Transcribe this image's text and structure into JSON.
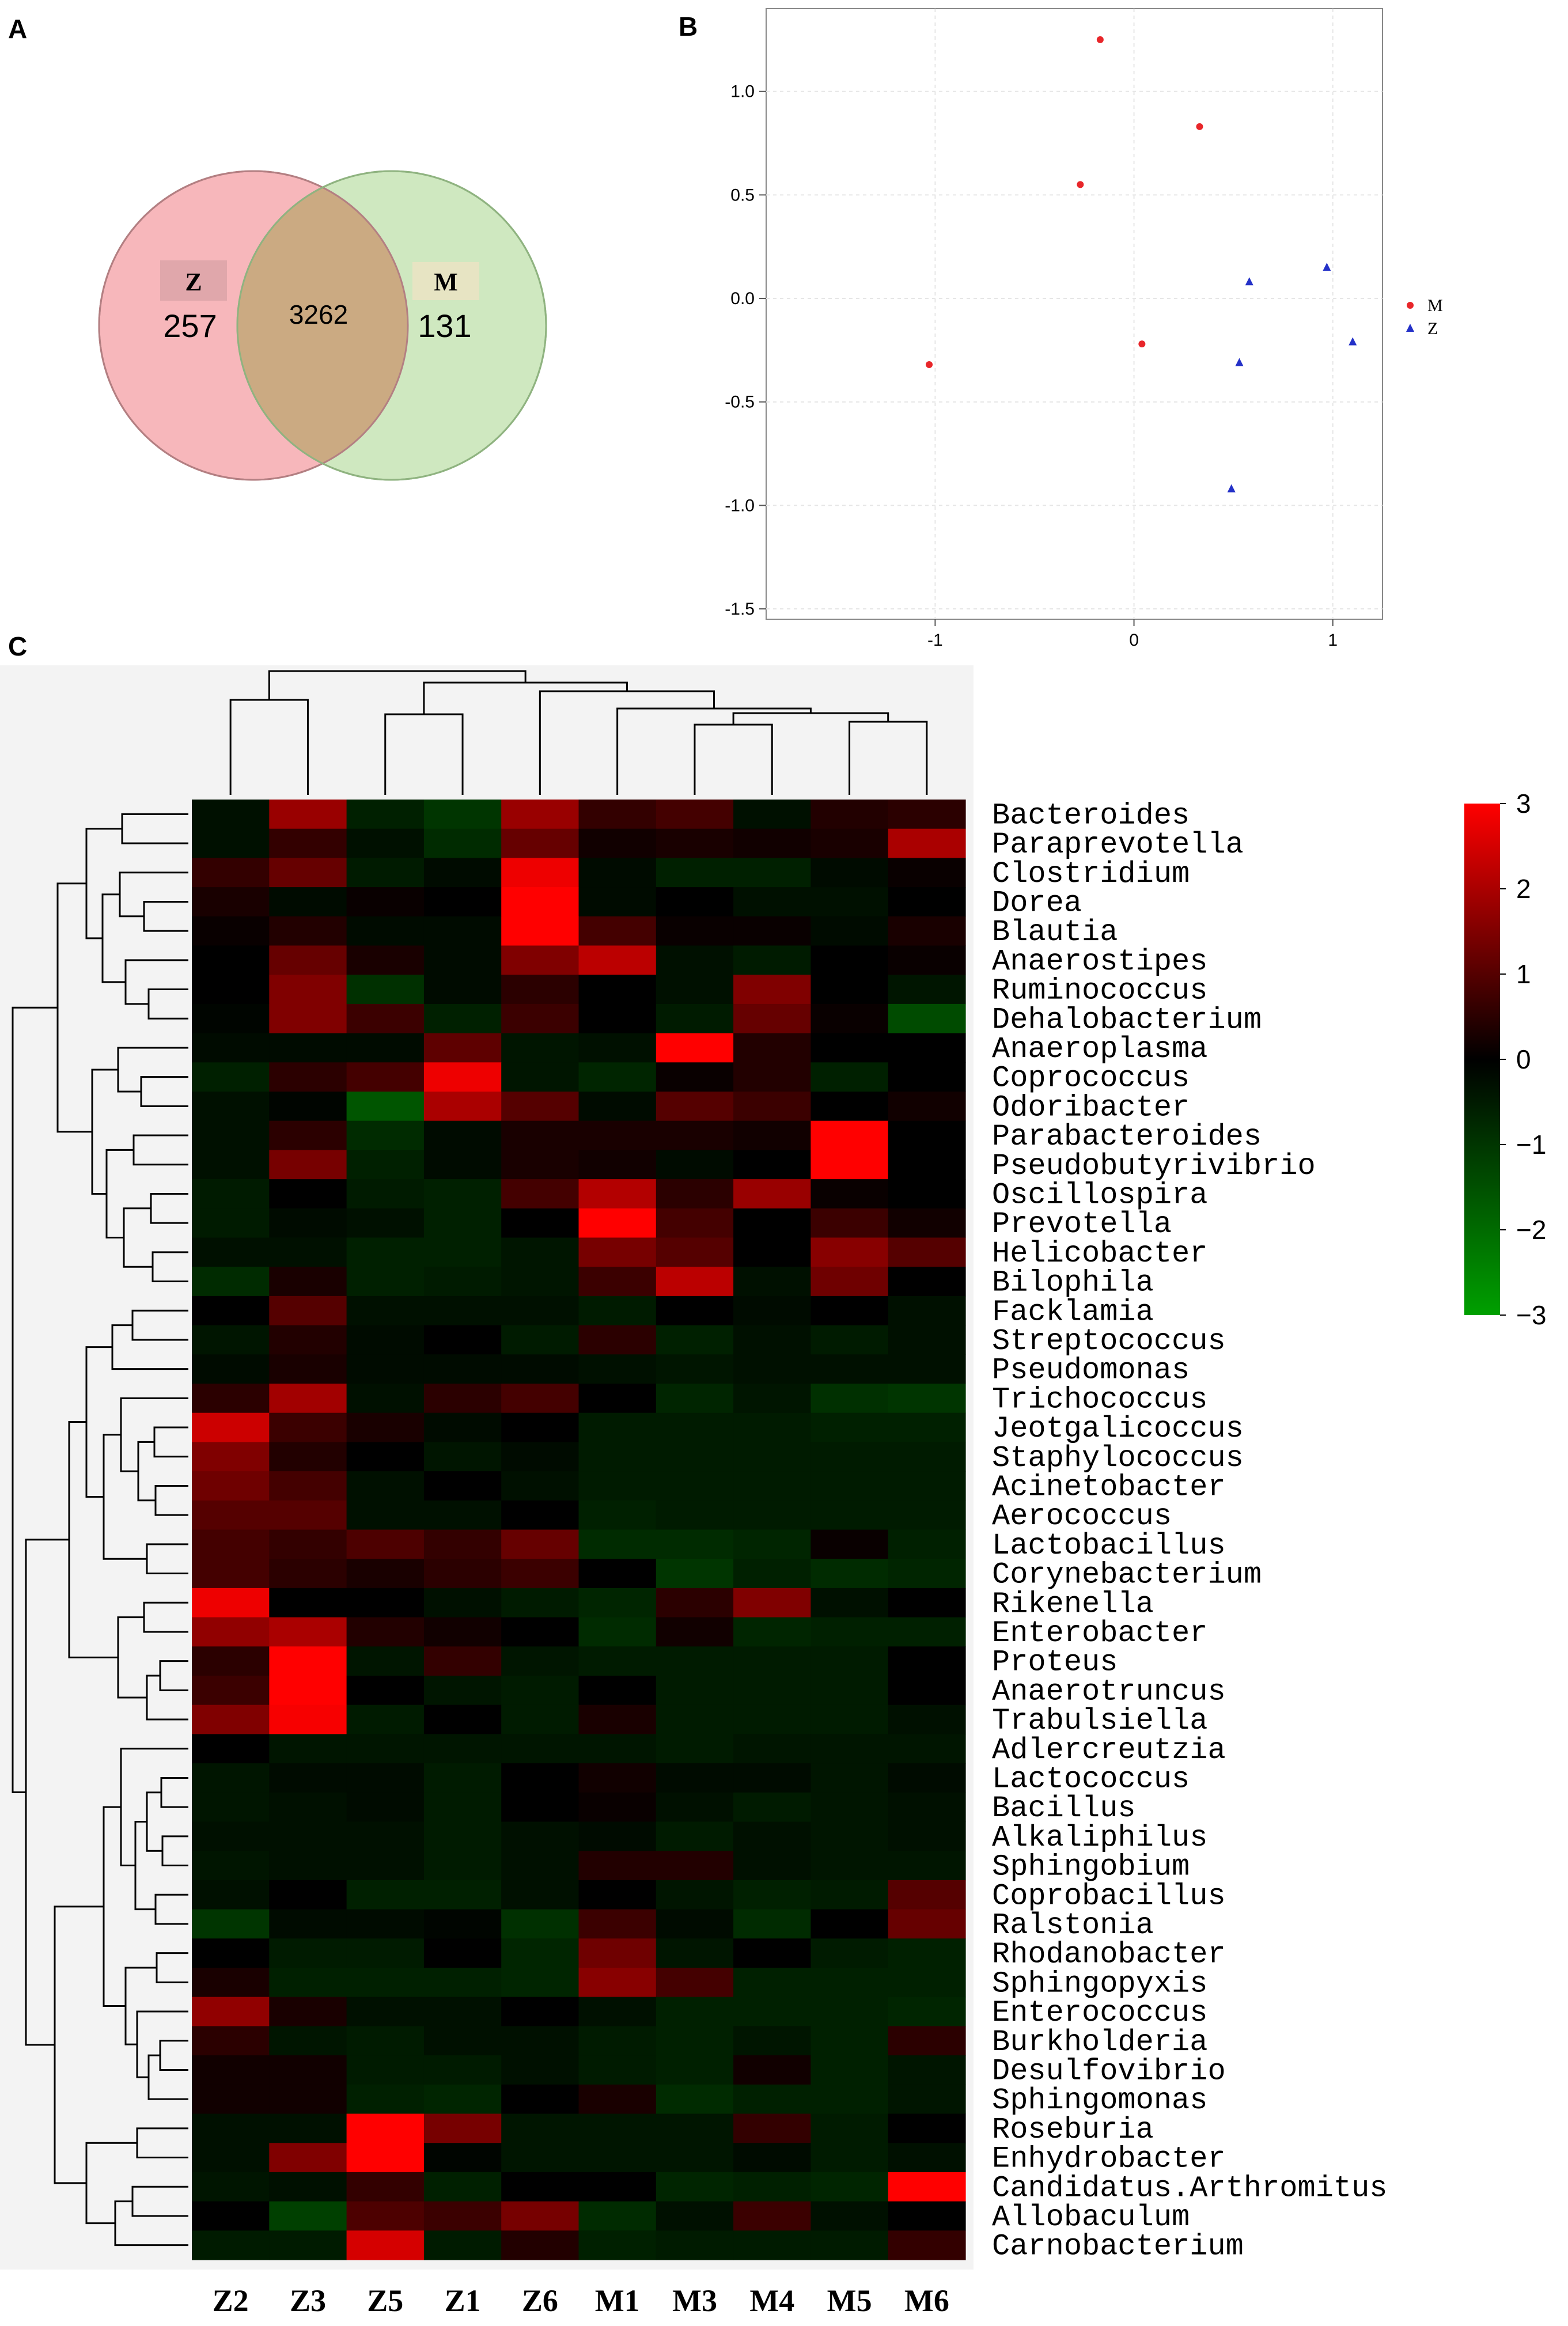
{
  "panels": {
    "a": "A",
    "b": "B",
    "c": "C"
  },
  "chart_data": [
    {
      "type": "venn",
      "sets": [
        {
          "name": "Z",
          "only": 257,
          "color": "#f7b7bb"
        },
        {
          "name": "M",
          "only": 131,
          "color": "#cfe8c0"
        }
      ],
      "overlap": 3262,
      "overlap_color": "#cbaa82"
    },
    {
      "type": "scatter",
      "xlim": [
        -1.85,
        1.25
      ],
      "ylim": [
        -1.55,
        1.4
      ],
      "xticks": [
        -1,
        0,
        1
      ],
      "yticks": [
        -1.5,
        -1.0,
        -0.5,
        0.0,
        0.5,
        1.0
      ],
      "xtick_labels": [
        "-1",
        "0",
        "1"
      ],
      "ytick_labels": [
        "-1.5",
        "-1.0",
        "-0.5",
        "0.0",
        "0.5",
        "1.0"
      ],
      "grid": true,
      "legend": "right",
      "series": [
        {
          "name": "M",
          "marker": "circle",
          "color": "#e8262a",
          "points": [
            [
              -0.17,
              1.25
            ],
            [
              0.33,
              0.83
            ],
            [
              -0.27,
              0.55
            ],
            [
              0.04,
              -0.22
            ],
            [
              -1.03,
              -0.32
            ]
          ]
        },
        {
          "name": "Z",
          "marker": "triangle",
          "color": "#2431c8",
          "points": [
            [
              0.58,
              0.08
            ],
            [
              0.97,
              0.15
            ],
            [
              1.1,
              -0.21
            ],
            [
              0.53,
              -0.31
            ],
            [
              0.49,
              -0.92
            ]
          ]
        }
      ]
    },
    {
      "type": "heatmap",
      "columns": [
        "Z2",
        "Z3",
        "Z5",
        "Z1",
        "Z6",
        "M1",
        "M3",
        "M4",
        "M5",
        "M6"
      ],
      "rows": [
        "Bacteroides",
        "Paraprevotella",
        "Clostridium",
        "Dorea",
        "Blautia",
        "Anaerostipes",
        "Ruminococcus",
        "Dehalobacterium",
        "Anaeroplasma",
        "Coprococcus",
        "Odoribacter",
        "Parabacteroides",
        "Pseudobutyrivibrio",
        "Oscillospira",
        "Prevotella",
        "Helicobacter",
        "Bilophila",
        "Facklamia",
        "Streptococcus",
        "Pseudomonas",
        "Trichococcus",
        "Jeotgalicoccus",
        "Staphylococcus",
        "Acinetobacter",
        "Aerococcus",
        "Lactobacillus",
        "Corynebacterium",
        "Rikenella",
        "Enterobacter",
        "Proteus",
        "Anaerotruncus",
        "Trabulsiella",
        "Adlercreutzia",
        "Lactococcus",
        "Bacillus",
        "Alkaliphilus",
        "Sphingobium",
        "Coprobacillus",
        "Ralstonia",
        "Rhodanobacter",
        "Sphingopyxis",
        "Enterococcus",
        "Burkholderia",
        "Desulfovibrio",
        "Sphingomonas",
        "Roseburia",
        "Enhydrobacter",
        "Candidatus.Arthromitus",
        "Allobaculum",
        "Carnobacterium"
      ],
      "values": [
        [
          -0.3,
          1.8,
          -0.6,
          -1.0,
          1.8,
          0.6,
          0.8,
          -0.3,
          0.4,
          0.5
        ],
        [
          -0.3,
          0.6,
          -0.3,
          -0.8,
          1.2,
          0.2,
          0.3,
          0.2,
          0.3,
          2.0
        ],
        [
          0.6,
          1.2,
          -0.5,
          -0.2,
          2.8,
          -0.2,
          -0.6,
          -0.6,
          -0.2,
          0.1
        ],
        [
          0.3,
          -0.2,
          0.1,
          0.0,
          3.4,
          -0.2,
          0.0,
          -0.3,
          -0.3,
          0.0
        ],
        [
          0.1,
          0.4,
          -0.2,
          -0.2,
          3.0,
          0.8,
          0.1,
          0.1,
          -0.2,
          0.3
        ],
        [
          0.0,
          1.2,
          0.3,
          -0.2,
          1.5,
          2.2,
          -0.3,
          -0.5,
          0.0,
          0.1
        ],
        [
          0.0,
          1.5,
          -0.9,
          -0.2,
          0.5,
          0.0,
          -0.3,
          1.5,
          0.0,
          -0.4
        ],
        [
          -0.1,
          1.5,
          0.7,
          -0.6,
          0.7,
          0.0,
          -0.5,
          1.2,
          0.1,
          -1.4
        ],
        [
          -0.2,
          -0.2,
          -0.2,
          1.1,
          -0.4,
          -0.3,
          3.2,
          0.4,
          0.0,
          0.0
        ],
        [
          -0.6,
          0.5,
          0.8,
          2.8,
          -0.4,
          -0.7,
          0.1,
          0.4,
          -0.6,
          0.0
        ],
        [
          -0.3,
          -0.1,
          -1.6,
          2.0,
          1.0,
          -0.2,
          1.0,
          0.7,
          0.0,
          0.2
        ],
        [
          -0.3,
          0.5,
          -0.8,
          -0.2,
          0.3,
          0.3,
          0.3,
          0.2,
          3.3,
          0.0
        ],
        [
          -0.3,
          1.4,
          -0.6,
          -0.2,
          0.3,
          0.2,
          -0.2,
          0.0,
          3.3,
          0.0
        ],
        [
          -0.5,
          0.0,
          -0.5,
          -0.6,
          0.8,
          2.1,
          0.5,
          1.8,
          0.1,
          0.0
        ],
        [
          -0.5,
          -0.2,
          -0.3,
          -0.6,
          0.0,
          3.0,
          0.8,
          0.0,
          0.7,
          0.2
        ],
        [
          -0.3,
          -0.3,
          -0.6,
          -0.6,
          -0.4,
          1.4,
          1.0,
          0.0,
          1.6,
          1.0
        ],
        [
          -0.8,
          0.3,
          -0.6,
          -0.5,
          -0.4,
          0.7,
          2.2,
          -0.3,
          1.3,
          0.0
        ],
        [
          0.0,
          1.0,
          -0.3,
          -0.3,
          -0.3,
          -0.5,
          0.0,
          -0.2,
          0.0,
          -0.3
        ],
        [
          -0.4,
          0.4,
          -0.2,
          0.0,
          -0.5,
          0.5,
          -0.6,
          -0.3,
          -0.5,
          -0.3
        ],
        [
          -0.2,
          0.3,
          -0.2,
          -0.2,
          -0.2,
          -0.3,
          -0.4,
          -0.3,
          -0.3,
          -0.3
        ],
        [
          0.5,
          1.9,
          -0.3,
          0.5,
          0.8,
          0.0,
          -0.7,
          -0.4,
          -0.9,
          -1.0
        ],
        [
          2.4,
          0.7,
          0.3,
          -0.2,
          0.0,
          -0.5,
          -0.5,
          -0.5,
          -0.6,
          -0.6
        ],
        [
          1.5,
          0.4,
          0.0,
          -0.4,
          -0.2,
          -0.5,
          -0.5,
          -0.5,
          -0.5,
          -0.5
        ],
        [
          1.3,
          0.8,
          -0.3,
          0.0,
          -0.3,
          -0.5,
          -0.5,
          -0.5,
          -0.5,
          -0.5
        ],
        [
          1.0,
          1.0,
          -0.3,
          -0.3,
          0.0,
          -0.6,
          -0.5,
          -0.5,
          -0.5,
          -0.5
        ],
        [
          0.8,
          0.6,
          0.9,
          0.6,
          1.2,
          -0.8,
          -0.8,
          -0.7,
          0.1,
          -0.6
        ],
        [
          0.8,
          0.5,
          0.3,
          0.5,
          0.7,
          0.0,
          -1.0,
          -0.6,
          -0.8,
          -0.7
        ],
        [
          2.8,
          0.0,
          0.0,
          -0.3,
          -0.5,
          -0.7,
          0.5,
          1.5,
          -0.3,
          0.0
        ],
        [
          1.7,
          2.0,
          0.4,
          0.2,
          0.0,
          -0.8,
          0.2,
          -0.7,
          -0.6,
          -0.6
        ],
        [
          0.5,
          3.2,
          -0.4,
          0.6,
          -0.4,
          -0.5,
          -0.5,
          -0.5,
          -0.5,
          0.0
        ],
        [
          0.7,
          3.3,
          0.0,
          -0.4,
          -0.5,
          0.0,
          -0.5,
          -0.5,
          -0.5,
          0.0
        ],
        [
          1.5,
          2.9,
          -0.5,
          0.0,
          -0.5,
          0.3,
          -0.5,
          -0.5,
          -0.5,
          -0.3
        ],
        [
          0.0,
          -0.4,
          -0.4,
          -0.4,
          -0.4,
          -0.4,
          -0.5,
          -0.4,
          -0.4,
          -0.4
        ],
        [
          -0.4,
          -0.2,
          -0.2,
          -0.5,
          0.0,
          0.2,
          -0.2,
          -0.2,
          -0.4,
          -0.2
        ],
        [
          -0.4,
          -0.3,
          -0.2,
          -0.5,
          0.0,
          0.1,
          -0.3,
          -0.5,
          -0.4,
          -0.3
        ],
        [
          -0.3,
          -0.3,
          -0.3,
          -0.5,
          -0.3,
          -0.2,
          -0.5,
          -0.3,
          -0.4,
          -0.3
        ],
        [
          -0.4,
          -0.3,
          -0.3,
          -0.5,
          -0.3,
          0.4,
          0.4,
          -0.3,
          -0.4,
          -0.4
        ],
        [
          -0.3,
          0.0,
          -0.6,
          -0.6,
          -0.3,
          0.0,
          -0.4,
          -0.6,
          -0.5,
          1.0
        ],
        [
          -1.0,
          -0.2,
          -0.2,
          -0.1,
          -0.9,
          0.7,
          -0.2,
          -0.8,
          0.0,
          1.2
        ],
        [
          0.0,
          -0.5,
          -0.5,
          0.0,
          -0.7,
          1.3,
          -0.4,
          0.0,
          -0.5,
          -0.6
        ],
        [
          0.3,
          -0.6,
          -0.6,
          -0.6,
          -0.7,
          1.6,
          0.8,
          -0.6,
          -0.6,
          -0.6
        ],
        [
          1.7,
          0.3,
          -0.3,
          -0.3,
          0.0,
          -0.3,
          -0.6,
          -0.6,
          -0.6,
          -0.7
        ],
        [
          0.5,
          -0.4,
          -0.5,
          -0.3,
          -0.3,
          -0.5,
          -0.6,
          -0.4,
          -0.6,
          0.5
        ],
        [
          0.2,
          0.2,
          -0.5,
          -0.5,
          -0.3,
          -0.5,
          -0.6,
          0.2,
          -0.6,
          -0.4
        ],
        [
          0.2,
          0.2,
          -0.6,
          -0.7,
          0.0,
          0.3,
          -0.8,
          -0.6,
          -0.6,
          -0.4
        ],
        [
          -0.3,
          -0.3,
          3.5,
          1.4,
          -0.4,
          -0.4,
          -0.4,
          0.6,
          -0.5,
          0.0
        ],
        [
          -0.3,
          1.5,
          3.5,
          -0.1,
          -0.4,
          -0.4,
          -0.4,
          -0.2,
          -0.5,
          -0.3
        ],
        [
          -0.4,
          -0.3,
          0.6,
          -0.6,
          0.0,
          0.0,
          -0.7,
          -0.6,
          -0.7,
          3.0
        ],
        [
          0.0,
          -1.2,
          0.9,
          0.7,
          1.4,
          -0.8,
          -0.3,
          0.7,
          -0.3,
          0.0
        ],
        [
          -0.5,
          -0.5,
          2.5,
          -0.5,
          0.4,
          -0.6,
          -0.5,
          -0.5,
          -0.5,
          0.6
        ]
      ],
      "colorbar": {
        "min": -3,
        "max": 3,
        "ticks": [
          3,
          2,
          1,
          0,
          -1,
          -2,
          -3
        ],
        "tick_labels": [
          "3",
          "2",
          "1",
          "0",
          "−1",
          "−2",
          "−3"
        ],
        "high_color": "#ff0000",
        "mid_color": "#000000",
        "low_color": "#00a000"
      }
    }
  ]
}
